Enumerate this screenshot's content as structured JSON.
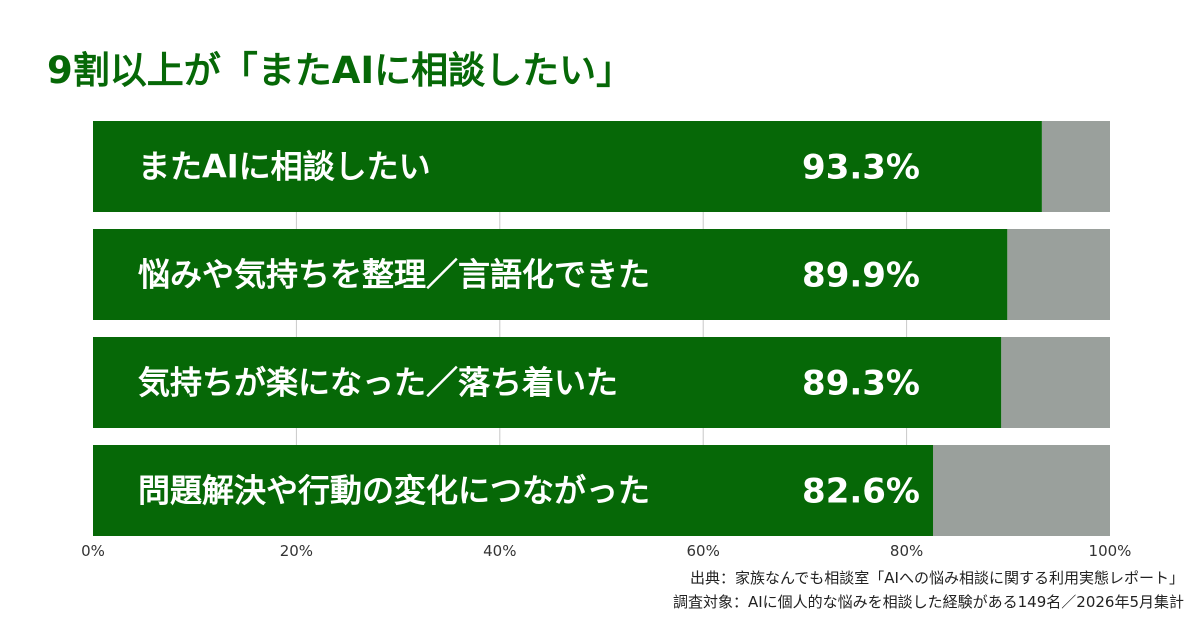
{
  "title": "9割以上が「またAIに相談したい」",
  "chart_data": {
    "type": "bar",
    "orientation": "horizontal",
    "stacked_with_remainder": true,
    "categories": [
      "またAIに相談したい",
      "悩みや気持ちを整理／言語化できた",
      "気持ちが楽になった／落ち着いた",
      "問題解決や行動の変化につながった"
    ],
    "values": [
      93.3,
      89.9,
      89.3,
      82.6
    ],
    "value_labels": [
      "93.3%",
      "89.9%",
      "89.3%",
      "82.6%"
    ],
    "xlim": [
      0,
      100
    ],
    "xticks": [
      0,
      20,
      40,
      60,
      80,
      100
    ],
    "xtick_labels": [
      "0%",
      "20%",
      "40%",
      "60%",
      "80%",
      "100%"
    ],
    "grid": true,
    "colors": {
      "bar": "#066807",
      "remainder": "#9aa09c",
      "grid": "#c8c8c8",
      "label": "#ffffff",
      "title": "#066807"
    }
  },
  "source": {
    "line1": "出典：家族なんでも相談室「AIへの悩み相談に関する利用実態レポート」",
    "line2": "調査対象：AIに個人的な悩みを相談した経験がある149名／2026年5月集計"
  }
}
